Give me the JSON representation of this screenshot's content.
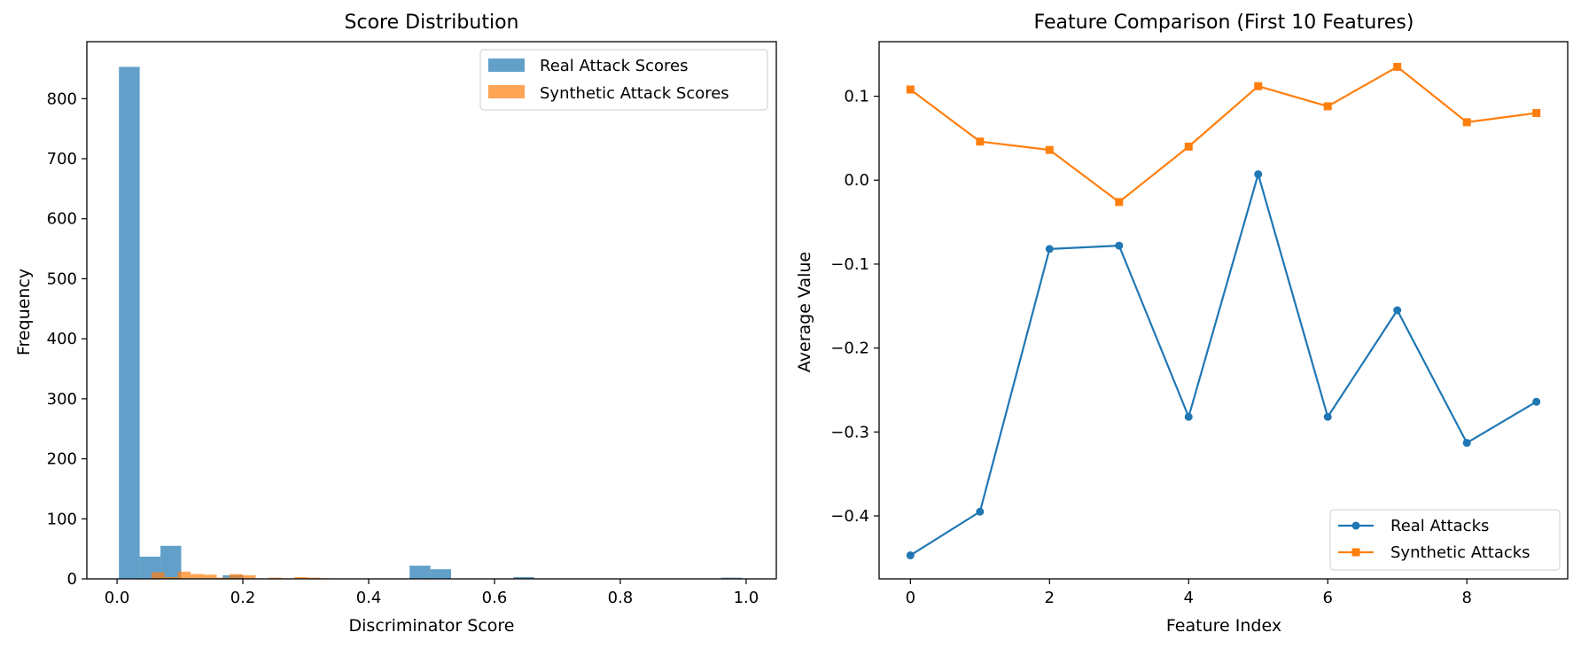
{
  "colors": {
    "blue": "#1f77b4",
    "orange": "#ff7f0e"
  },
  "chart_data": [
    {
      "type": "histogram",
      "title": "Score Distribution",
      "xlabel": "Discriminator Score",
      "ylabel": "Frequency",
      "xlim": [
        -0.048,
        1.048
      ],
      "ylim": [
        0,
        895
      ],
      "xticks": [
        0.0,
        0.2,
        0.4,
        0.6,
        0.8,
        1.0
      ],
      "xtick_labels": [
        "0.0",
        "0.2",
        "0.4",
        "0.6",
        "0.8",
        "1.0"
      ],
      "yticks": [
        0,
        100,
        200,
        300,
        400,
        500,
        600,
        700,
        800
      ],
      "ytick_labels": [
        "0",
        "100",
        "200",
        "300",
        "400",
        "500",
        "600",
        "700",
        "800"
      ],
      "grid": false,
      "legend_position": "upper right",
      "series": [
        {
          "name": "Real Attack Scores",
          "color": "#1f77b4",
          "opacity": 0.7,
          "bin_edges": [
            0.003,
            0.036,
            0.069,
            0.102,
            0.135,
            0.168,
            0.201,
            0.234,
            0.267,
            0.3,
            0.333,
            0.366,
            0.399,
            0.432,
            0.465,
            0.498,
            0.531,
            0.564,
            0.597,
            0.63,
            0.663,
            0.696,
            0.729,
            0.762,
            0.795,
            0.828,
            0.861,
            0.894,
            0.927,
            0.96,
            0.993
          ],
          "counts": [
            853,
            37,
            55,
            0,
            0,
            6,
            0,
            0,
            0,
            0,
            0,
            0,
            0,
            0,
            22,
            16,
            0,
            0,
            0,
            3,
            0,
            0,
            0,
            0,
            0,
            0,
            0,
            0,
            0,
            2
          ]
        },
        {
          "name": "Synthetic Attack Scores",
          "color": "#ff7f0e",
          "opacity": 0.7,
          "bin_edges": [
            0.055,
            0.0757,
            0.0963,
            0.117,
            0.1377,
            0.1583,
            0.179,
            0.1997,
            0.2203,
            0.241,
            0.2617,
            0.2823,
            0.303,
            0.3237,
            0.3443,
            0.365
          ],
          "counts": [
            11,
            3,
            12,
            8,
            7,
            2,
            8,
            6,
            1,
            2,
            1,
            3,
            2,
            1,
            0
          ]
        }
      ]
    },
    {
      "type": "line",
      "title": "Feature Comparison (First 10 Features)",
      "xlabel": "Feature Index",
      "ylabel": "Average Value",
      "xlim": [
        -0.45,
        9.45
      ],
      "ylim": [
        -0.475,
        0.165
      ],
      "xticks": [
        0,
        2,
        4,
        6,
        8
      ],
      "xtick_labels": [
        "0",
        "2",
        "4",
        "6",
        "8"
      ],
      "yticks": [
        -0.4,
        -0.3,
        -0.2,
        -0.1,
        0.0,
        0.1
      ],
      "ytick_labels": [
        "−0.4",
        "−0.3",
        "−0.2",
        "−0.1",
        "0.0",
        "0.1"
      ],
      "grid": false,
      "legend_position": "lower right",
      "x": [
        0,
        1,
        2,
        3,
        4,
        5,
        6,
        7,
        8,
        9
      ],
      "series": [
        {
          "name": "Real Attacks",
          "color": "#1f77b4",
          "marker": "circle",
          "values": [
            -0.447,
            -0.395,
            -0.082,
            -0.078,
            -0.282,
            0.007,
            -0.282,
            -0.155,
            -0.313,
            -0.264
          ]
        },
        {
          "name": "Synthetic Attacks",
          "color": "#ff7f0e",
          "marker": "square",
          "values": [
            0.108,
            0.046,
            0.036,
            -0.026,
            0.04,
            0.112,
            0.088,
            0.135,
            0.069,
            0.08
          ]
        }
      ]
    }
  ]
}
